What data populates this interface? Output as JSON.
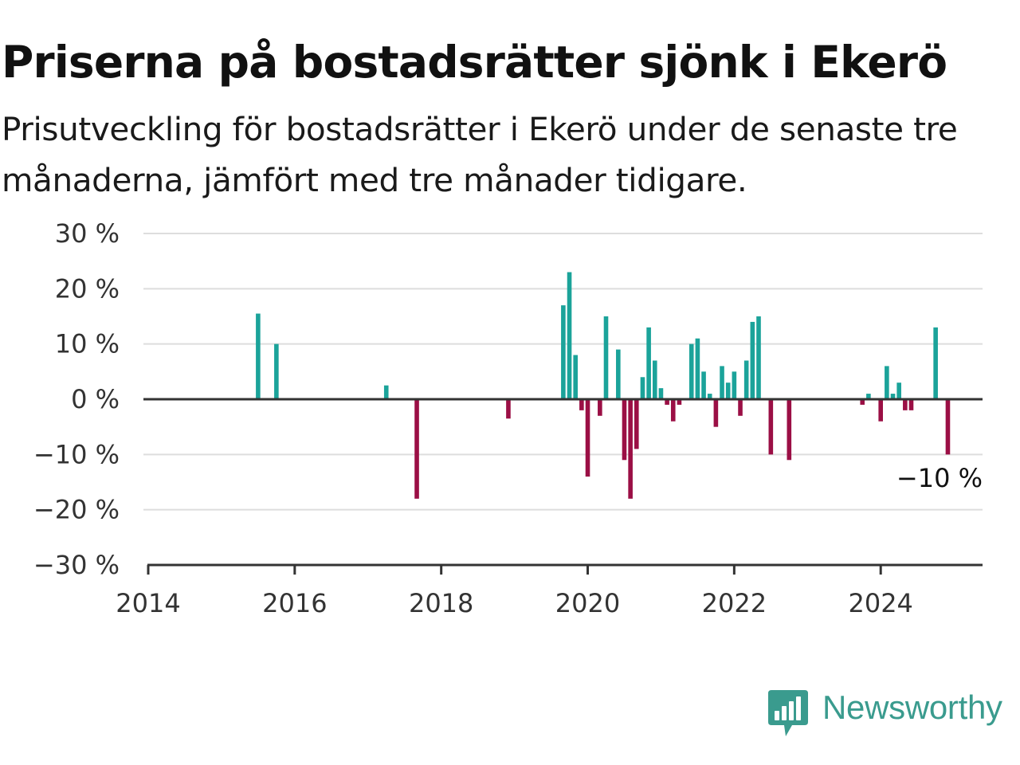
{
  "title": "Priserna på bostadsrätter sjönk i Ekerö",
  "subtitle": "Prisutveckling för bostadsrätter i Ekerö under de senaste tre månaderna, jämfört med tre månader tidigare.",
  "logo": {
    "text": "Newsworthy",
    "icon": "bar-chart-speech-bubble-icon"
  },
  "colors": {
    "positive": "#1ba39a",
    "negative": "#9b0f45",
    "grid": "#dddddd",
    "axis": "#333333",
    "brand": "#3a9b8e"
  },
  "chart_data": {
    "type": "bar",
    "x_format": "year-month",
    "xlim": [
      "2014-01",
      "2025-05"
    ],
    "ylim": [
      -30,
      30
    ],
    "yticks": [
      30,
      20,
      10,
      0,
      -10,
      -20,
      -30
    ],
    "ytick_labels": [
      "30 %",
      "20 %",
      "10 %",
      "0 %",
      "−10 %",
      "−20 %",
      "−30 %"
    ],
    "xticks": [
      "2014-01",
      "2016-01",
      "2018-01",
      "2020-01",
      "2022-01",
      "2024-01"
    ],
    "xtick_labels": [
      "2014",
      "2016",
      "2018",
      "2020",
      "2022",
      "2024"
    ],
    "grid": true,
    "series": [
      {
        "x": [
          "2015-07",
          "2015-10",
          "2017-04",
          "2017-09",
          "2018-12",
          "2019-09",
          "2019-10",
          "2019-11",
          "2019-12",
          "2020-01",
          "2020-03",
          "2020-04",
          "2020-06",
          "2020-07",
          "2020-08",
          "2020-09",
          "2020-10",
          "2020-11",
          "2020-12",
          "2021-01",
          "2021-02",
          "2021-03",
          "2021-04",
          "2021-06",
          "2021-07",
          "2021-08",
          "2021-09",
          "2021-10",
          "2021-11",
          "2021-12",
          "2022-01",
          "2022-02",
          "2022-03",
          "2022-04",
          "2022-05",
          "2022-07",
          "2022-10",
          "2023-10",
          "2023-11",
          "2024-01",
          "2024-02",
          "2024-03",
          "2024-04",
          "2024-05",
          "2024-06",
          "2024-10",
          "2024-12"
        ],
        "values": [
          15.5,
          10,
          2.5,
          -18,
          -3.5,
          17,
          23,
          8,
          -2,
          -14,
          -3,
          15,
          9,
          -11,
          -18,
          -9,
          4,
          13,
          7,
          2,
          -1,
          -4,
          -1,
          10,
          11,
          5,
          1,
          -5,
          6,
          3,
          5,
          -3,
          7,
          14,
          15,
          -10,
          -11,
          -1,
          1,
          -4,
          6,
          1,
          3,
          -2,
          -2,
          13,
          -10
        ]
      }
    ],
    "last_value_label": "−10 %"
  }
}
